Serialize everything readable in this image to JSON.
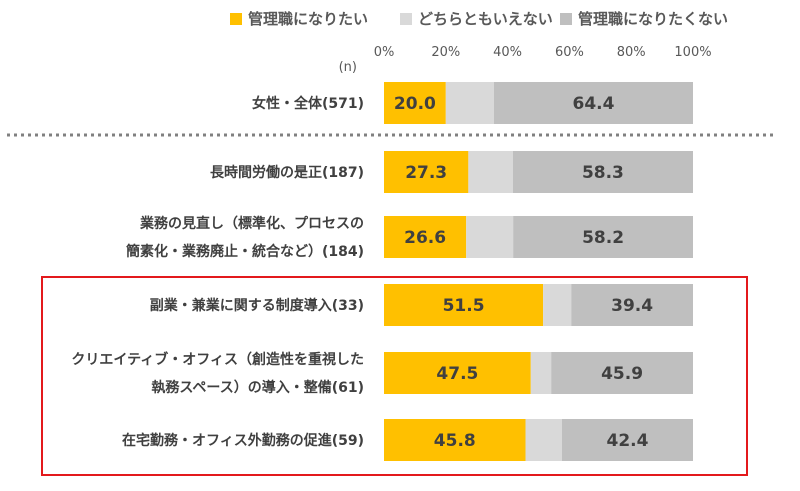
{
  "colors": {
    "want": "#FFC000",
    "neither": "#D9D9D9",
    "not_want": "#BFBFBF",
    "highlight": "#E3191C",
    "divider": "#808080",
    "text": "#404040",
    "tick": "#595959"
  },
  "chart_data": {
    "type": "bar",
    "orientation": "horizontal",
    "stacked": true,
    "sample_size_label": "(n)",
    "xlim": [
      0,
      100
    ],
    "ticks": [
      "0%",
      "20%",
      "40%",
      "60%",
      "80%",
      "100%"
    ],
    "legend": [
      "管理職になりたい",
      "どちらともいえない",
      "管理職になりたくない"
    ],
    "categories": [
      {
        "lines": [
          "女性・全体(571)"
        ],
        "want": 20.0,
        "not_want": 64.4
      },
      {
        "lines": [
          "長時間労働の是正(187)"
        ],
        "want": 27.3,
        "not_want": 58.3
      },
      {
        "lines": [
          "業務の見直し（標準化、プロセスの",
          "簡素化・業務廃止・統合など）(184)"
        ],
        "want": 26.6,
        "not_want": 58.2
      },
      {
        "lines": [
          "副業・兼業に関する制度導入(33)"
        ],
        "want": 51.5,
        "not_want": 39.4
      },
      {
        "lines": [
          "クリエイティブ・オフィス（創造性を重視した",
          "執務スペース）の導入・整備(61)"
        ],
        "want": 47.5,
        "not_want": 45.9
      },
      {
        "lines": [
          "在宅勤務・オフィス外勤務の促進(59)"
        ],
        "want": 45.8,
        "not_want": 42.4
      }
    ],
    "value_labels": [
      {
        "want": "20.0",
        "not_want": "64.4"
      },
      {
        "want": "27.3",
        "not_want": "58.3"
      },
      {
        "want": "26.6",
        "not_want": "58.2"
      },
      {
        "want": "51.5",
        "not_want": "39.4"
      },
      {
        "want": "47.5",
        "not_want": "45.9"
      },
      {
        "want": "45.8",
        "not_want": "42.4"
      }
    ],
    "divider_after_index": 0,
    "highlight_group_indices": [
      3,
      4,
      5
    ]
  }
}
